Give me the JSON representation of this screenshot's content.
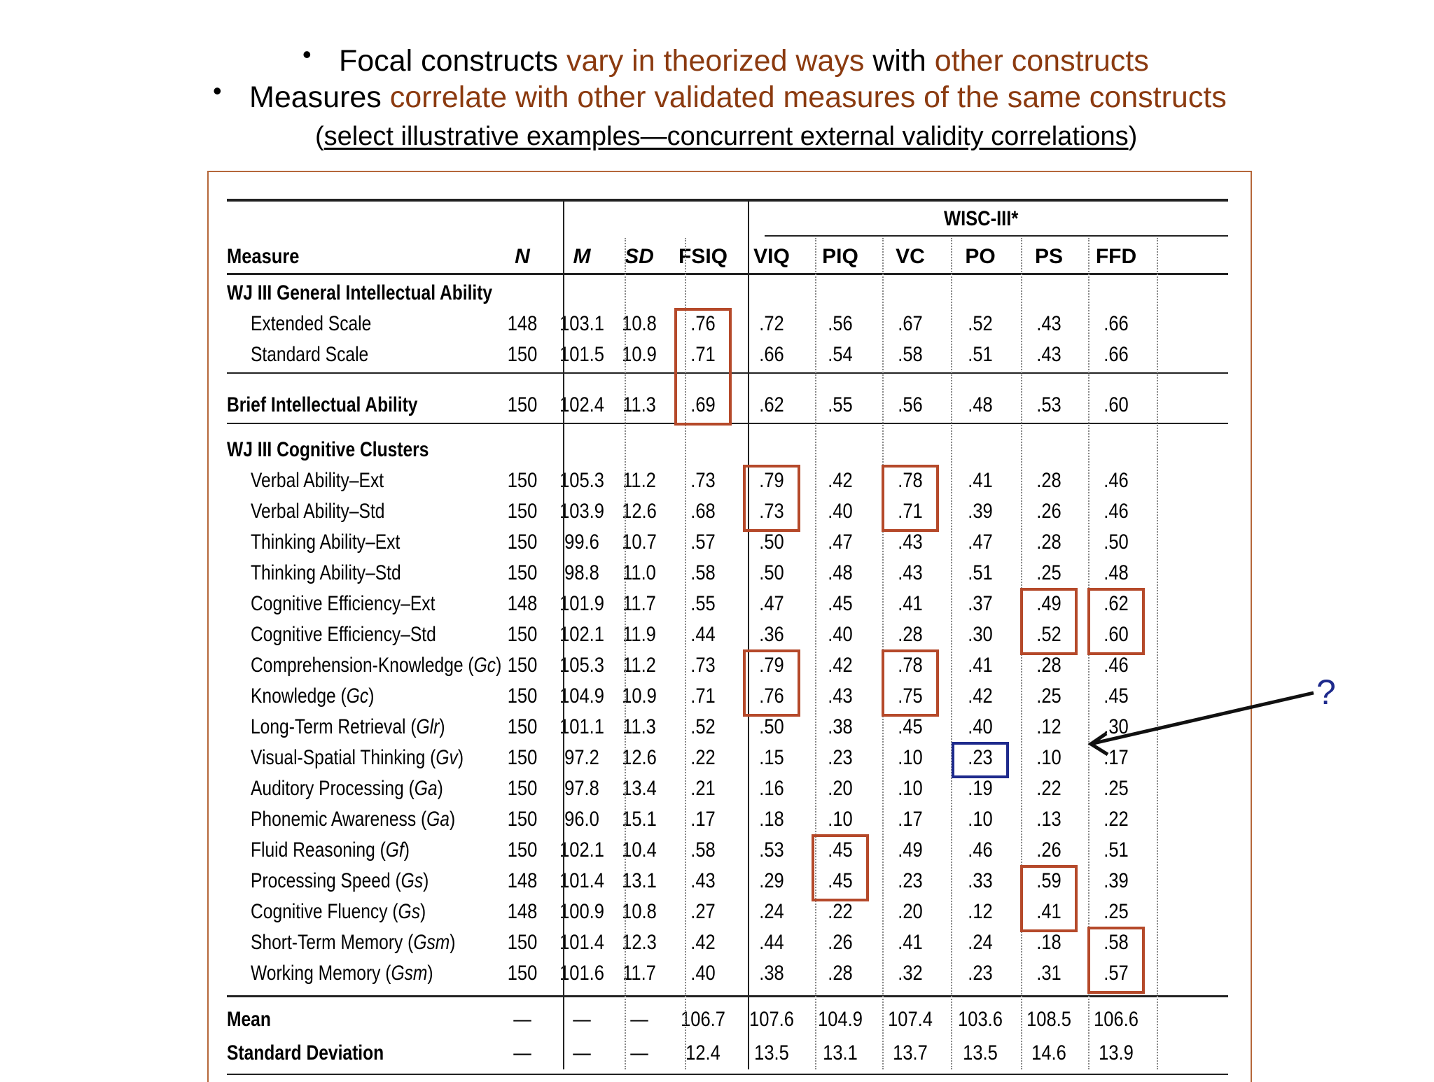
{
  "bullets": [
    {
      "parts": [
        "Focal constructs ",
        "vary in theorized ways",
        " with ",
        "other constructs"
      ]
    },
    {
      "parts": [
        "Measures ",
        "correlate with other validated measures of the same constructs"
      ]
    }
  ],
  "subtitle": {
    "open": "(",
    "text": "select illustrative examples—concurrent external validity correlations",
    "close": ")"
  },
  "table": {
    "group_header": "WISC-III*",
    "header_measure": "Measure",
    "columns": [
      "N",
      "M",
      "SD",
      "FSIQ",
      "VIQ",
      "PIQ",
      "VC",
      "PO",
      "PS",
      "FFD"
    ],
    "sections": [
      {
        "title": "WJ III General Intellectual Ability",
        "rows": [
          {
            "label": "Extended Scale",
            "cells": [
              "148",
              "103.1",
              "10.8",
              ".76",
              ".72",
              ".56",
              ".67",
              ".52",
              ".43",
              ".66"
            ]
          },
          {
            "label": "Standard Scale",
            "cells": [
              "150",
              "101.5",
              "10.9",
              ".71",
              ".66",
              ".54",
              ".58",
              ".51",
              ".43",
              ".66"
            ]
          }
        ]
      },
      {
        "title": "Brief Intellectual Ability",
        "cells": [
          "150",
          "102.4",
          "11.3",
          ".69",
          ".62",
          ".55",
          ".56",
          ".48",
          ".53",
          ".60"
        ],
        "rows": []
      },
      {
        "title": "WJ III Cognitive Clusters",
        "rows": [
          {
            "label": "Verbal Ability–Ext",
            "cells": [
              "150",
              "105.3",
              "11.2",
              ".73",
              ".79",
              ".42",
              ".78",
              ".41",
              ".28",
              ".46"
            ]
          },
          {
            "label": "Verbal Ability–Std",
            "cells": [
              "150",
              "103.9",
              "12.6",
              ".68",
              ".73",
              ".40",
              ".71",
              ".39",
              ".26",
              ".46"
            ]
          },
          {
            "label": "Thinking Ability–Ext",
            "cells": [
              "150",
              "99.6",
              "10.7",
              ".57",
              ".50",
              ".47",
              ".43",
              ".47",
              ".28",
              ".50"
            ]
          },
          {
            "label": "Thinking Ability–Std",
            "cells": [
              "150",
              "98.8",
              "11.0",
              ".58",
              ".50",
              ".48",
              ".43",
              ".51",
              ".25",
              ".48"
            ]
          },
          {
            "label": "Cognitive Efficiency–Ext",
            "cells": [
              "148",
              "101.9",
              "11.7",
              ".55",
              ".47",
              ".45",
              ".41",
              ".37",
              ".49",
              ".62"
            ]
          },
          {
            "label": "Cognitive Efficiency–Std",
            "cells": [
              "150",
              "102.1",
              "11.9",
              ".44",
              ".36",
              ".40",
              ".28",
              ".30",
              ".52",
              ".60"
            ]
          },
          {
            "label": "Comprehension-Knowledge (",
            "abbr": "Gc",
            "cells": [
              "150",
              "105.3",
              "11.2",
              ".73",
              ".79",
              ".42",
              ".78",
              ".41",
              ".28",
              ".46"
            ]
          },
          {
            "label": "Knowledge (",
            "abbr": "Gc",
            "cells": [
              "150",
              "104.9",
              "10.9",
              ".71",
              ".76",
              ".43",
              ".75",
              ".42",
              ".25",
              ".45"
            ]
          },
          {
            "label": "Long-Term Retrieval (",
            "abbr": "Glr",
            "cells": [
              "150",
              "101.1",
              "11.3",
              ".52",
              ".50",
              ".38",
              ".45",
              ".40",
              ".12",
              ".30"
            ]
          },
          {
            "label": "Visual-Spatial Thinking (",
            "abbr": "Gv",
            "cells": [
              "150",
              "97.2",
              "12.6",
              ".22",
              ".15",
              ".23",
              ".10",
              ".23",
              ".10",
              ".17"
            ]
          },
          {
            "label": "Auditory Processing (",
            "abbr": "Ga",
            "cells": [
              "150",
              "97.8",
              "13.4",
              ".21",
              ".16",
              ".20",
              ".10",
              ".19",
              ".22",
              ".25"
            ]
          },
          {
            "label": "Phonemic Awareness (",
            "abbr": "Ga",
            "cells": [
              "150",
              "96.0",
              "15.1",
              ".17",
              ".18",
              ".10",
              ".17",
              ".10",
              ".13",
              ".22"
            ]
          },
          {
            "label": "Fluid Reasoning (",
            "abbr": "Gf",
            "cells": [
              "150",
              "102.1",
              "10.4",
              ".58",
              ".53",
              ".45",
              ".49",
              ".46",
              ".26",
              ".51"
            ]
          },
          {
            "label": "Processing Speed (",
            "abbr": "Gs",
            "cells": [
              "148",
              "101.4",
              "13.1",
              ".43",
              ".29",
              ".45",
              ".23",
              ".33",
              ".59",
              ".39"
            ]
          },
          {
            "label": "Cognitive Fluency (",
            "abbr": "Gs",
            "cells": [
              "148",
              "100.9",
              "10.8",
              ".27",
              ".24",
              ".22",
              ".20",
              ".12",
              ".41",
              ".25"
            ]
          },
          {
            "label": "Short-Term Memory (",
            "abbr": "Gsm",
            "cells": [
              "150",
              "101.4",
              "12.3",
              ".42",
              ".44",
              ".26",
              ".41",
              ".24",
              ".18",
              ".58"
            ]
          },
          {
            "label": "Working Memory (",
            "abbr": "Gsm",
            "cells": [
              "150",
              "101.6",
              "11.7",
              ".40",
              ".38",
              ".28",
              ".32",
              ".23",
              ".31",
              ".57"
            ]
          }
        ]
      }
    ],
    "summary": [
      {
        "label": "Mean",
        "cells": [
          "—",
          "—",
          "—",
          "106.7",
          "107.6",
          "104.9",
          "107.4",
          "103.6",
          "108.5",
          "106.6"
        ]
      },
      {
        "label": "Standard Deviation",
        "cells": [
          "—",
          "—",
          "—",
          "12.4",
          "13.5",
          "13.1",
          "13.7",
          "13.5",
          "14.6",
          "13.9"
        ]
      }
    ]
  },
  "annotation": {
    "question": "?"
  },
  "colors": {
    "accent": "#8b3a0f",
    "highlight_box": "#b5492a",
    "blue_box": "#1e2a8c"
  }
}
